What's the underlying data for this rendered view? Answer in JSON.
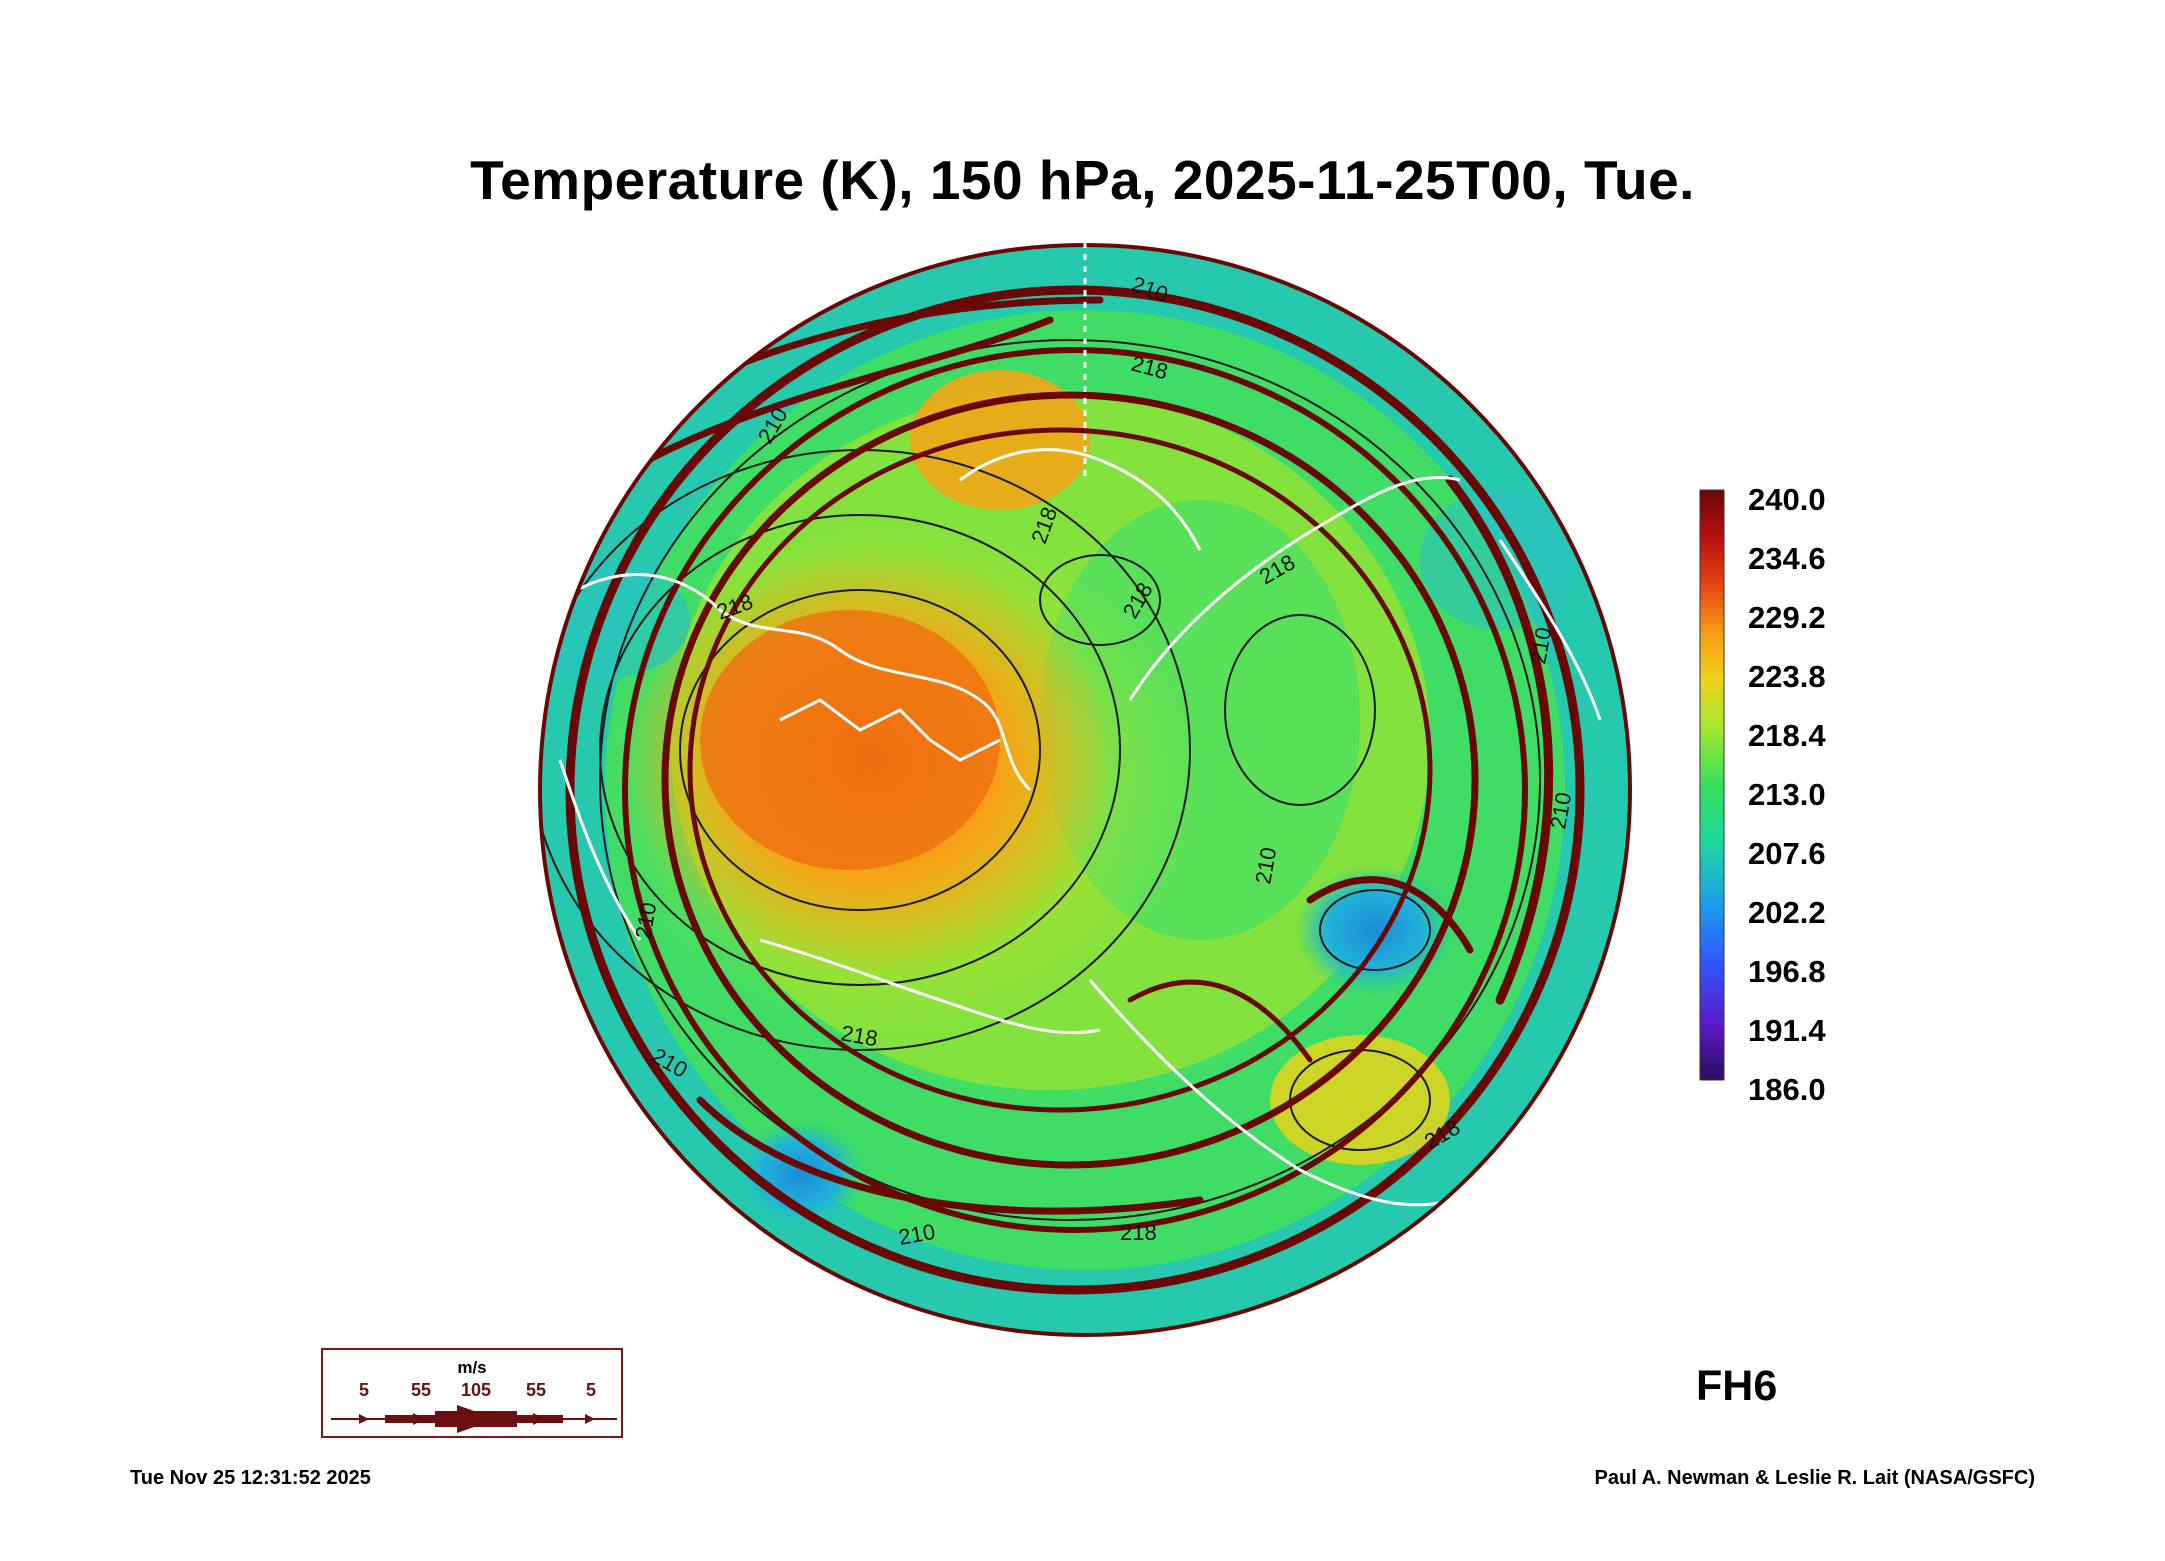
{
  "title": "Temperature (K), 150 hPa, 2025-11-25T00, Tue.",
  "colorbar": {
    "ticks": [
      "240.0",
      "234.6",
      "229.2",
      "223.8",
      "218.4",
      "213.0",
      "207.6",
      "202.2",
      "196.8",
      "191.4",
      "186.0"
    ],
    "min": 186.0,
    "max": 240.0,
    "unit": "K",
    "colors": [
      "#2a0f5a",
      "#5b18c4",
      "#2f58ff",
      "#1a9eea",
      "#1fd6a2",
      "#35e05a",
      "#a6e72e",
      "#f2d21d",
      "#f59a14",
      "#e74411",
      "#b80f0f",
      "#6a0606"
    ]
  },
  "contour_labels": [
    "210",
    "218",
    "210",
    "218",
    "218",
    "218",
    "218",
    "210",
    "210",
    "218",
    "218",
    "210",
    "218",
    "210",
    "210",
    "210"
  ],
  "forecast_hour": "FH6",
  "wind_legend": {
    "unit": "m/s",
    "labels": [
      "5",
      "55",
      "105",
      "55",
      "5"
    ],
    "color": "#6a1010"
  },
  "footer": {
    "timestamp": "Tue Nov 25 12:31:52 2025",
    "credit": "Paul A. Newman & Leslie R. Lait (NASA/GSFC)"
  }
}
